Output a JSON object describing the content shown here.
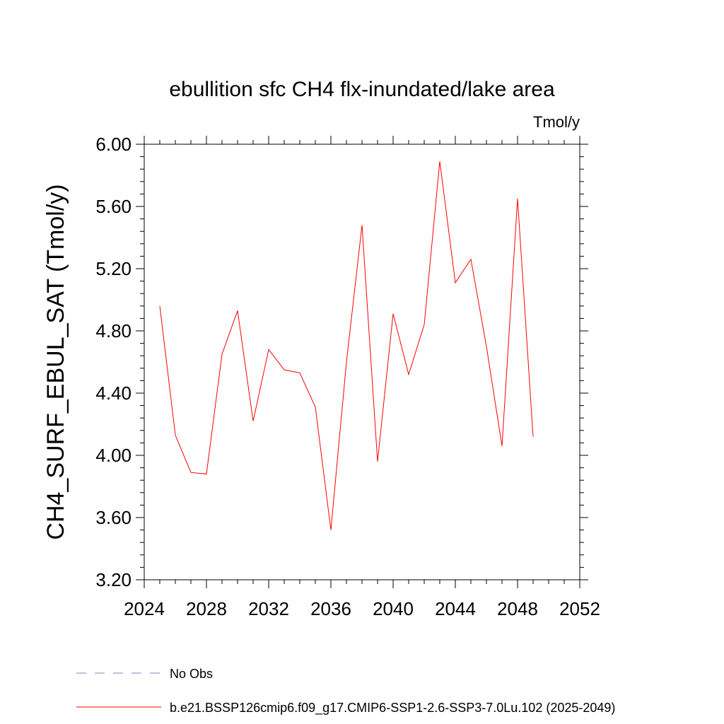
{
  "chart_data": {
    "type": "line",
    "title": "ebullition sfc CH4 flx-inundated/lake area",
    "units": "Tmol/y",
    "ylabel": "CH4_SURF_EBUL_SAT  (Tmol/y)",
    "xlabel": "",
    "xlim": [
      2024,
      2052
    ],
    "ylim": [
      3.2,
      6.0
    ],
    "xticks": [
      "2024",
      "2028",
      "2032",
      "2036",
      "2040",
      "2044",
      "2048",
      "2052"
    ],
    "yticks": [
      "3.20",
      "3.60",
      "4.00",
      "4.40",
      "4.80",
      "5.20",
      "5.60",
      "6.00"
    ],
    "grid": false,
    "legend_position": "bottom",
    "series": [
      {
        "name": "b.e21.BSSP126cmip6.f09_g17.CMIP6-SSP1-2.6-SSP3-7.0Lu.102 (2025-2049)",
        "color": "#ff0000",
        "style": "solid",
        "x": [
          2025,
          2026,
          2027,
          2028,
          2029,
          2030,
          2031,
          2032,
          2033,
          2034,
          2035,
          2036,
          2037,
          2038,
          2039,
          2040,
          2041,
          2042,
          2043,
          2044,
          2045,
          2046,
          2047,
          2048,
          2049
        ],
        "y": [
          4.96,
          4.13,
          3.89,
          3.88,
          4.65,
          4.93,
          4.22,
          4.68,
          4.55,
          4.53,
          4.31,
          3.52,
          4.6,
          5.48,
          3.96,
          4.91,
          4.52,
          4.84,
          5.89,
          5.11,
          5.26,
          4.7,
          4.06,
          5.65,
          4.12
        ]
      }
    ],
    "legend": [
      {
        "label": "No Obs",
        "color": "#8a7fc0",
        "style": "dashed"
      },
      {
        "label": "b.e21.BSSP126cmip6.f09_g17.CMIP6-SSP1-2.6-SSP3-7.0Lu.102 (2025-2049)",
        "color": "#ff0000",
        "style": "solid"
      }
    ]
  }
}
